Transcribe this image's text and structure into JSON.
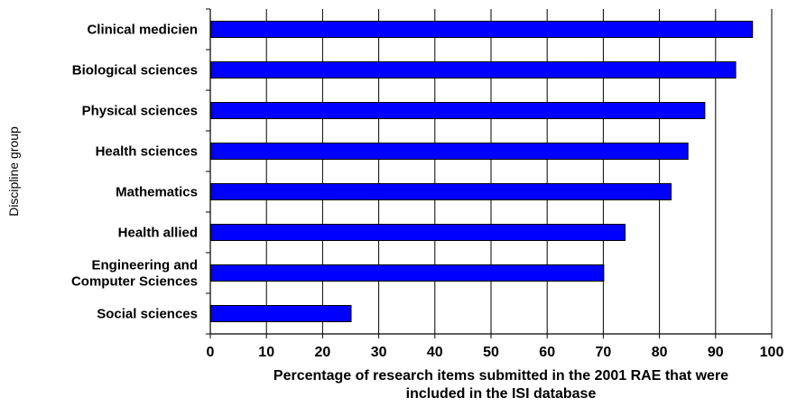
{
  "chart_data": {
    "type": "bar",
    "orientation": "horizontal",
    "categories": [
      "Clinical medicien",
      "Biological sciences",
      "Physical sciences",
      "Health sciences",
      "Mathematics",
      "Health allied",
      "Engineering and\nComputer Sciences",
      "Social sciences"
    ],
    "values": [
      96.5,
      93.5,
      88,
      85,
      82,
      73.8,
      70,
      25
    ],
    "title": "",
    "xlabel": "Percentage of research items submitted in the 2001 RAE that were\nincluded in the ISI database",
    "ylabel": "Discipline group",
    "xlim": [
      0,
      100
    ],
    "xticks": [
      0,
      10,
      20,
      30,
      40,
      50,
      60,
      70,
      80,
      90,
      100
    ],
    "grid": "vertical",
    "bar_color": "#0000ff",
    "bar_edge_color": "#000000",
    "legend": "none"
  }
}
